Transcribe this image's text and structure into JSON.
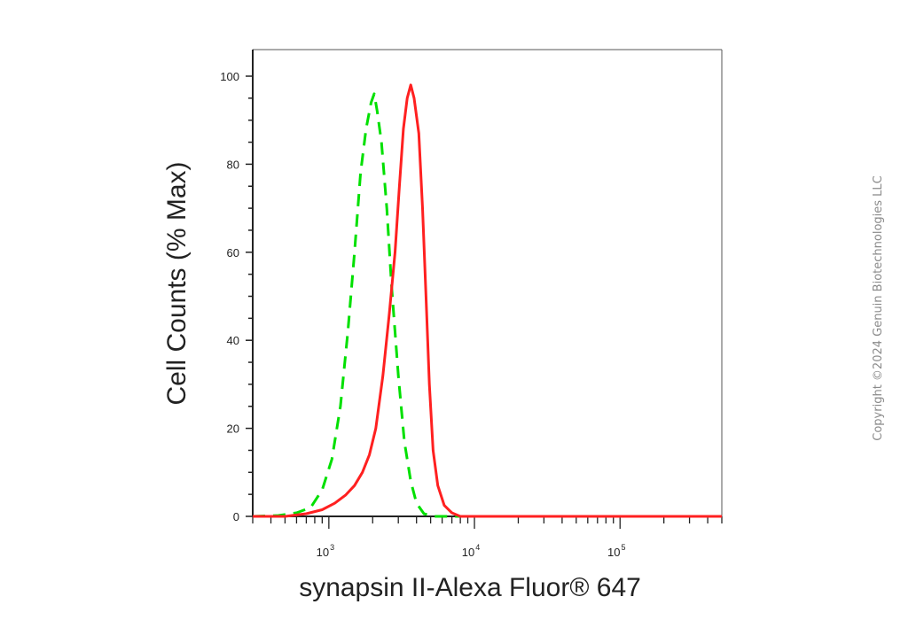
{
  "chart_data": {
    "type": "line",
    "title": "",
    "xlabel": "synapsin II-Alexa Fluor® 647",
    "ylabel": "Cell Counts (% Max)",
    "x_scale": "log",
    "xlim": [
      300,
      500000
    ],
    "ylim": [
      0,
      100
    ],
    "y_ticks": [
      "0",
      "20",
      "40",
      "60",
      "80",
      "100"
    ],
    "x_ticks": [
      {
        "value": 1000,
        "base": "10",
        "exp": "3"
      },
      {
        "value": 10000,
        "base": "10",
        "exp": "4"
      },
      {
        "value": 100000,
        "base": "10",
        "exp": "5"
      }
    ],
    "grid": false,
    "legend": "none",
    "series": [
      {
        "color": "#00e000",
        "style": "dashed",
        "points": [
          [
            300,
            0
          ],
          [
            450,
            0.2
          ],
          [
            600,
            0.8
          ],
          [
            750,
            2
          ],
          [
            900,
            6
          ],
          [
            1050,
            13
          ],
          [
            1200,
            25
          ],
          [
            1350,
            42
          ],
          [
            1500,
            60
          ],
          [
            1650,
            78
          ],
          [
            1800,
            88
          ],
          [
            1950,
            94
          ],
          [
            2050,
            96
          ],
          [
            2150,
            92
          ],
          [
            2300,
            85
          ],
          [
            2500,
            70
          ],
          [
            2700,
            52
          ],
          [
            3000,
            32
          ],
          [
            3300,
            17
          ],
          [
            3650,
            8
          ],
          [
            4000,
            3
          ],
          [
            4500,
            0.6
          ],
          [
            5200,
            0
          ],
          [
            500000,
            0
          ]
        ]
      },
      {
        "color": "#ff2020",
        "style": "solid",
        "points": [
          [
            300,
            0
          ],
          [
            500,
            0
          ],
          [
            700,
            0.6
          ],
          [
            900,
            1.5
          ],
          [
            1100,
            3
          ],
          [
            1300,
            4.8
          ],
          [
            1500,
            7
          ],
          [
            1700,
            10
          ],
          [
            1900,
            14
          ],
          [
            2100,
            20
          ],
          [
            2350,
            32
          ],
          [
            2600,
            46
          ],
          [
            2850,
            60
          ],
          [
            3050,
            75
          ],
          [
            3250,
            88
          ],
          [
            3450,
            95
          ],
          [
            3650,
            98
          ],
          [
            3850,
            95
          ],
          [
            4150,
            87
          ],
          [
            4400,
            70
          ],
          [
            4650,
            50
          ],
          [
            4900,
            30
          ],
          [
            5200,
            15
          ],
          [
            5600,
            7
          ],
          [
            6200,
            2.5
          ],
          [
            7000,
            0.8
          ],
          [
            8000,
            0
          ],
          [
            500000,
            0
          ]
        ]
      }
    ]
  },
  "watermark": {
    "text": "Copyright ©2024 Genuin Biotechnologies LLC"
  }
}
